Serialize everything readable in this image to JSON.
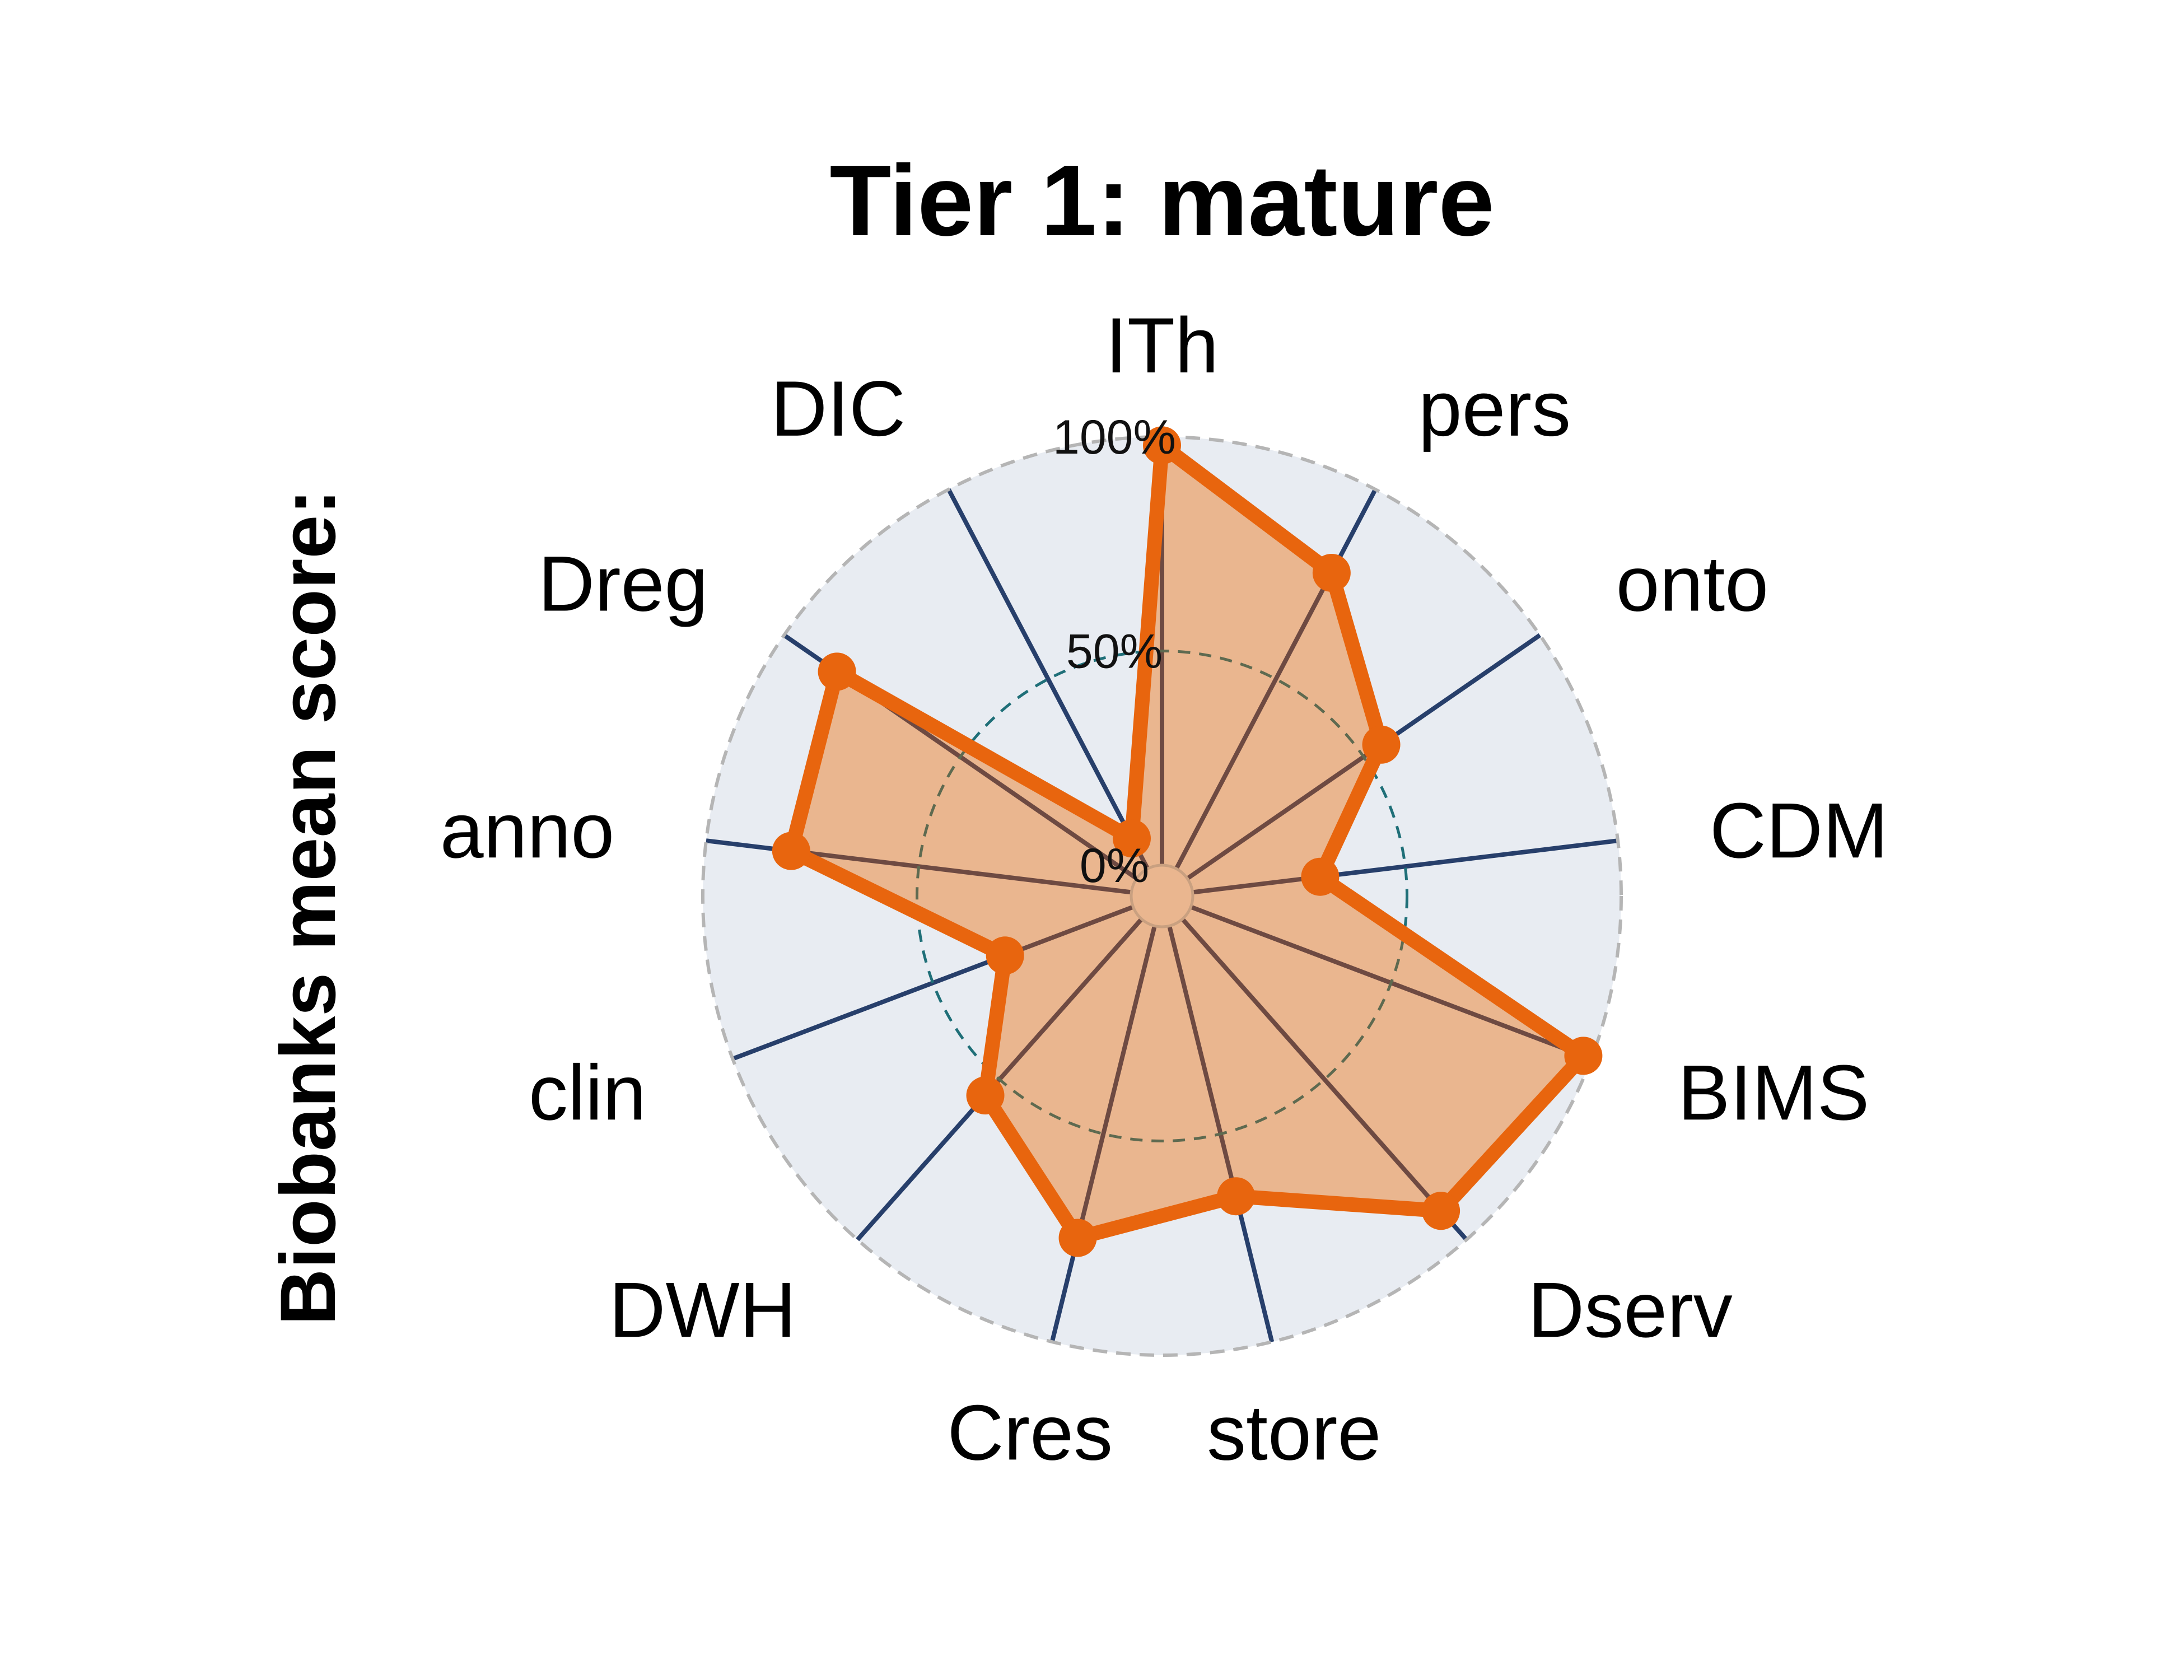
{
  "chart_data": {
    "type": "radar",
    "title": "Tier 1: mature",
    "ylabel": "Biobanks mean score:",
    "categories": [
      "ITh",
      "pers",
      "onto",
      "CDM",
      "BIMS",
      "Dserv",
      "store",
      "Cres",
      "DWH",
      "clin",
      "anno",
      "Dreg",
      "DIC"
    ],
    "series": [
      {
        "values": [
          0.98,
          0.78,
          0.55,
          0.3,
          0.98,
          0.91,
          0.65,
          0.75,
          0.55,
          0.32,
          0.8,
          0.85,
          0.08
        ]
      }
    ],
    "rlim": [
      0,
      1
    ],
    "rticks": [
      0,
      0.5,
      1.0
    ],
    "rtick_labels": [
      "0%",
      "50%",
      "100%"
    ],
    "colors": {
      "series_line": "#E8650E",
      "series_fill": "#EAB68F",
      "spoke_inner": "#6E4A42",
      "spoke_outer": "#273F6B",
      "background": "#E8ECF2",
      "outer_ring": "#B5B5B5",
      "mid_ring": "#5E6A50",
      "mid_ring_outer": "#1F6F78",
      "center_disc": "#EAB68F",
      "center_disc_edge": "#C9A080"
    }
  }
}
